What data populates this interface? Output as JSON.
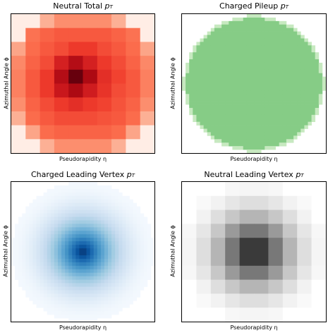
{
  "chart_data": [
    {
      "type": "heatmap",
      "title": "Neutral Total p_T",
      "title_text": "Neutral Total ",
      "title_sym": "p",
      "title_sub": "T",
      "xlabel": "Pseudorapidity η",
      "ylabel": "",
      "colormap": "Reds",
      "grid": false,
      "description": "coarse 10x10 grid, circular deposit, peak at center",
      "grid_size": 10,
      "values": [
        [
          0.02,
          0.02,
          0.18,
          0.3,
          0.3,
          0.3,
          0.3,
          0.18,
          0.02,
          0.02
        ],
        [
          0.02,
          0.4,
          0.45,
          0.48,
          0.48,
          0.48,
          0.48,
          0.45,
          0.4,
          0.02
        ],
        [
          0.22,
          0.42,
          0.48,
          0.52,
          0.58,
          0.58,
          0.52,
          0.48,
          0.42,
          0.22
        ],
        [
          0.32,
          0.45,
          0.52,
          0.68,
          0.78,
          0.68,
          0.58,
          0.52,
          0.45,
          0.32
        ],
        [
          0.35,
          0.48,
          0.58,
          0.78,
          1.0,
          0.8,
          0.62,
          0.55,
          0.48,
          0.35
        ],
        [
          0.35,
          0.48,
          0.58,
          0.72,
          0.8,
          0.7,
          0.6,
          0.52,
          0.48,
          0.35
        ],
        [
          0.3,
          0.45,
          0.52,
          0.58,
          0.62,
          0.58,
          0.55,
          0.5,
          0.45,
          0.3
        ],
        [
          0.18,
          0.42,
          0.48,
          0.52,
          0.52,
          0.52,
          0.5,
          0.48,
          0.42,
          0.18
        ],
        [
          0.02,
          0.22,
          0.42,
          0.45,
          0.45,
          0.45,
          0.45,
          0.42,
          0.22,
          0.02
        ],
        [
          0.02,
          0.02,
          0.18,
          0.3,
          0.3,
          0.3,
          0.3,
          0.18,
          0.02,
          0.02
        ]
      ]
    },
    {
      "type": "heatmap",
      "title": "Charged Pileup p_T",
      "title_text": "Charged Pileup ",
      "title_sym": "p",
      "title_sub": "T",
      "xlabel": "Pseudorapidity η",
      "ylabel": "",
      "colormap": "Greens",
      "grid": false,
      "description": "uniform circular disc of green",
      "grid_size": 40
    },
    {
      "type": "heatmap",
      "title": "Charged Leading Vertex p_T",
      "title_text": "Charged Leading Vertex ",
      "title_sym": "p",
      "title_sub": "T",
      "xlabel": "Pseudorapidity η",
      "ylabel": "Azimuthal Angle ϕ",
      "colormap": "Blues",
      "grid": false,
      "description": "fine grid radial gradient, dark blue peak at center",
      "grid_size": 40
    },
    {
      "type": "heatmap",
      "title": "Neutral Leading Vertex p_T",
      "title_text": "Neutral Leading Vertex ",
      "title_sym": "p",
      "title_sub": "T",
      "xlabel": "Pseudorapidity η",
      "ylabel": "Azimuthal Angle ϕ",
      "colormap": "Greys",
      "grid": false,
      "description": "coarse 10x10 grid, circular deposit, black peak at center",
      "grid_size": 10
    }
  ],
  "panels": [
    {
      "title_text": "Neutral Total ",
      "title_sym": "p",
      "title_sub": "T",
      "xlabel": "Pseudorapidity η",
      "ylabel": "Azimuthal Angle ϕ"
    },
    {
      "title_text": "Charged Pileup ",
      "title_sym": "p",
      "title_sub": "T",
      "xlabel": "Pseudorapidity η",
      "ylabel": "Azimuthal Angle ϕ"
    },
    {
      "title_text": "Charged Leading Vertex ",
      "title_sym": "p",
      "title_sub": "T",
      "xlabel": "Pseudorapidity η",
      "ylabel": "Azimuthal Angle ϕ"
    },
    {
      "title_text": "Neutral Leading Vertex ",
      "title_sym": "p",
      "title_sub": "T",
      "xlabel": "Pseudorapidity η",
      "ylabel": "Azimuthal Angle ϕ"
    }
  ],
  "colors": {
    "reds_low": "#fff5f0",
    "reds_high": "#67000d",
    "greens_disc": "#86cc86",
    "blues_low": "#f7fbff",
    "blues_high": "#08306b",
    "greys_low": "#ffffff",
    "greys_high": "#000000"
  }
}
